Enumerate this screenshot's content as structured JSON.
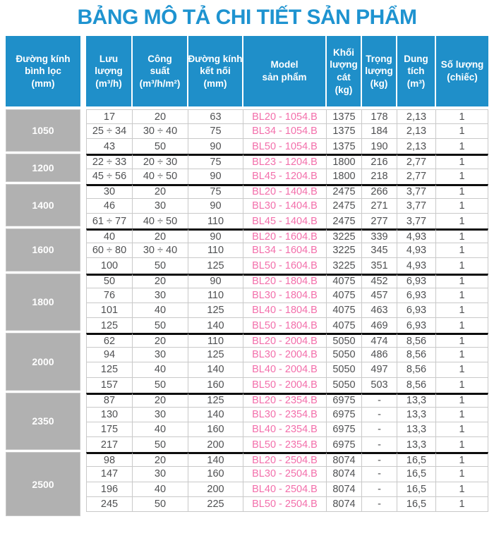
{
  "title": "BẢNG MÔ TẢ CHI TIẾT SẢN PHẨM",
  "colors": {
    "header_blue": "#1f8fc9",
    "title_blue": "#1e93d0",
    "group_gray": "#b1b1b1",
    "group_gray_border": "#c6c6c6",
    "model_pink": "#f36fab",
    "text_dark": "#4f5052",
    "grid_border": "#c9c9c9",
    "group_divider_black": "#0c0c0c"
  },
  "table": {
    "columns": [
      {
        "id": "duong-kinh-binh-loc",
        "label": "Đường kính\nbình lọc\n(mm)"
      },
      {
        "id": "luu-luong",
        "label": "Lưu\nlượng\n(m³/h)"
      },
      {
        "id": "cong-suat",
        "label": "Công\nsuất\n(m³/h/m²)"
      },
      {
        "id": "duong-kinh-ket-noi",
        "label": "Đường kính\nkết nối\n(mm)"
      },
      {
        "id": "model-san-pham",
        "label": "Model\nsản phẩm"
      },
      {
        "id": "khoi-luong-cat",
        "label": "Khối\nlượng\ncát\n(kg)"
      },
      {
        "id": "trong-luong",
        "label": "Trọng\nlượng\n(kg)"
      },
      {
        "id": "dung-tich",
        "label": "Dung\ntích\n(m³)"
      },
      {
        "id": "so-luong",
        "label": "Số lượng\n(chiếc)"
      }
    ],
    "groups": [
      {
        "diameter": "1050",
        "rows": [
          [
            "17",
            "20",
            "63",
            "BL20 - 1054.B",
            "1375",
            "178",
            "2,13",
            "1"
          ],
          [
            "25 ÷ 34",
            "30 ÷ 40",
            "75",
            "BL34 - 1054.B",
            "1375",
            "184",
            "2,13",
            "1"
          ],
          [
            "43",
            "50",
            "90",
            "BL50 - 1054.B",
            "1375",
            "190",
            "2,13",
            "1"
          ]
        ]
      },
      {
        "diameter": "1200",
        "rows": [
          [
            "22 ÷ 33",
            "20 ÷ 30",
            "75",
            "BL23 - 1204.B",
            "1800",
            "216",
            "2,77",
            "1"
          ],
          [
            "45 ÷ 56",
            "40 ÷ 50",
            "90",
            "BL45 - 1204.B",
            "1800",
            "218",
            "2,77",
            "1"
          ]
        ]
      },
      {
        "diameter": "1400",
        "rows": [
          [
            "30",
            "20",
            "75",
            "BL20 - 1404.B",
            "2475",
            "266",
            "3,77",
            "1"
          ],
          [
            "46",
            "30",
            "90",
            "BL30 - 1404.B",
            "2475",
            "271",
            "3,77",
            "1"
          ],
          [
            "61 ÷ 77",
            "40 ÷ 50",
            "110",
            "BL45 - 1404.B",
            "2475",
            "277",
            "3,77",
            "1"
          ]
        ]
      },
      {
        "diameter": "1600",
        "rows": [
          [
            "40",
            "20",
            "90",
            "BL20 - 1604.B",
            "3225",
            "339",
            "4,93",
            "1"
          ],
          [
            "60 ÷ 80",
            "30 ÷ 40",
            "110",
            "BL34 - 1604.B",
            "3225",
            "345",
            "4,93",
            "1"
          ],
          [
            "100",
            "50",
            "125",
            "BL50 - 1604.B",
            "3225",
            "351",
            "4,93",
            "1"
          ]
        ]
      },
      {
        "diameter": "1800",
        "rows": [
          [
            "50",
            "20",
            "90",
            "BL20 - 1804.B",
            "4075",
            "452",
            "6,93",
            "1"
          ],
          [
            "76",
            "30",
            "110",
            "BL30 - 1804.B",
            "4075",
            "457",
            "6,93",
            "1"
          ],
          [
            "101",
            "40",
            "125",
            "BL40 - 1804.B",
            "4075",
            "463",
            "6,93",
            "1"
          ],
          [
            "125",
            "50",
            "140",
            "BL50 - 1804.B",
            "4075",
            "469",
            "6,93",
            "1"
          ]
        ]
      },
      {
        "diameter": "2000",
        "rows": [
          [
            "62",
            "20",
            "110",
            "BL20 - 2004.B",
            "5050",
            "474",
            "8,56",
            "1"
          ],
          [
            "94",
            "30",
            "125",
            "BL30 - 2004.B",
            "5050",
            "486",
            "8,56",
            "1"
          ],
          [
            "125",
            "40",
            "140",
            "BL40 - 2004.B",
            "5050",
            "497",
            "8,56",
            "1"
          ],
          [
            "157",
            "50",
            "160",
            "BL50 - 2004.B",
            "5050",
            "503",
            "8,56",
            "1"
          ]
        ]
      },
      {
        "diameter": "2350",
        "rows": [
          [
            "87",
            "20",
            "125",
            "BL20 - 2354.B",
            "6975",
            "-",
            "13,3",
            "1"
          ],
          [
            "130",
            "30",
            "140",
            "BL30 - 2354.B",
            "6975",
            "-",
            "13,3",
            "1"
          ],
          [
            "175",
            "40",
            "160",
            "BL40 - 2354.B",
            "6975",
            "-",
            "13,3",
            "1"
          ],
          [
            "217",
            "50",
            "200",
            "BL50 - 2354.B",
            "6975",
            "-",
            "13,3",
            "1"
          ]
        ]
      },
      {
        "diameter": "2500",
        "rows": [
          [
            "98",
            "20",
            "140",
            "BL20 - 2504.B",
            "8074",
            "-",
            "16,5",
            "1"
          ],
          [
            "147",
            "30",
            "160",
            "BL30 - 2504.B",
            "8074",
            "-",
            "16,5",
            "1"
          ],
          [
            "196",
            "40",
            "200",
            "BL40 - 2504.B",
            "8074",
            "-",
            "16,5",
            "1"
          ],
          [
            "245",
            "50",
            "225",
            "BL50 - 2504.B",
            "8074",
            "-",
            "16,5",
            "1"
          ]
        ]
      }
    ]
  }
}
